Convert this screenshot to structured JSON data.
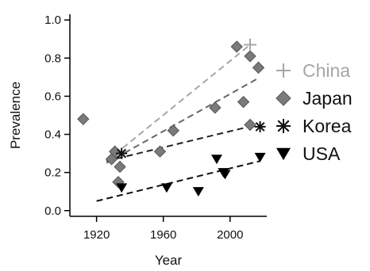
{
  "chart_data": {
    "type": "scatter",
    "title": "",
    "xlabel": "Year",
    "ylabel": "Prevalence",
    "xlim": [
      1904,
      2022
    ],
    "ylim": [
      -0.03,
      1.03
    ],
    "xticks": [
      "1920",
      "1960",
      "2000"
    ],
    "xtick_values": [
      1920,
      1960,
      2000
    ],
    "yticks": [
      "0.0",
      "0.2",
      "0.4",
      "0.6",
      "0.8",
      "1.0"
    ],
    "ytick_values": [
      0,
      0.2,
      0.4,
      0.6,
      0.8,
      1.0
    ],
    "grid": false,
    "legend_position": "right",
    "series": [
      {
        "name": "China",
        "marker": "plus",
        "color": "#a6a6a6",
        "points": [
          [
            2012,
            0.87
          ]
        ],
        "trend": [
          [
            1926,
            0.26
          ],
          [
            2012,
            0.87
          ]
        ],
        "trend_color": "#a6a6a6"
      },
      {
        "name": "Japan",
        "marker": "diamond",
        "color": "#7a7a7a",
        "points": [
          [
            1912,
            0.48
          ],
          [
            1929,
            0.27
          ],
          [
            1931,
            0.31
          ],
          [
            1934,
            0.23
          ],
          [
            1933,
            0.15
          ],
          [
            1958,
            0.31
          ],
          [
            1966,
            0.42
          ],
          [
            1991,
            0.54
          ],
          [
            2004,
            0.86
          ],
          [
            2008,
            0.57
          ],
          [
            2012,
            0.81
          ],
          [
            2017,
            0.75
          ],
          [
            2012,
            0.45
          ]
        ],
        "trend": [
          [
            1926,
            0.25
          ],
          [
            2016,
            0.69
          ]
        ],
        "trend_color": "#666666"
      },
      {
        "name": "Korea",
        "marker": "asterisk",
        "color": "#111111",
        "points": [
          [
            1935,
            0.3
          ],
          [
            2018,
            0.44
          ]
        ],
        "trend": [
          [
            1926,
            0.26
          ],
          [
            2016,
            0.45
          ]
        ],
        "trend_color": "#222222"
      },
      {
        "name": "USA",
        "marker": "triangle-down",
        "color": "#000000",
        "points": [
          [
            1935,
            0.12
          ],
          [
            1962,
            0.12
          ],
          [
            1981,
            0.1
          ],
          [
            1992,
            0.27
          ],
          [
            1996,
            0.2
          ],
          [
            1997,
            0.19
          ],
          [
            2018,
            0.28
          ]
        ],
        "trend": [
          [
            1920,
            0.05
          ],
          [
            2018,
            0.26
          ]
        ],
        "trend_color": "#111111"
      }
    ]
  }
}
